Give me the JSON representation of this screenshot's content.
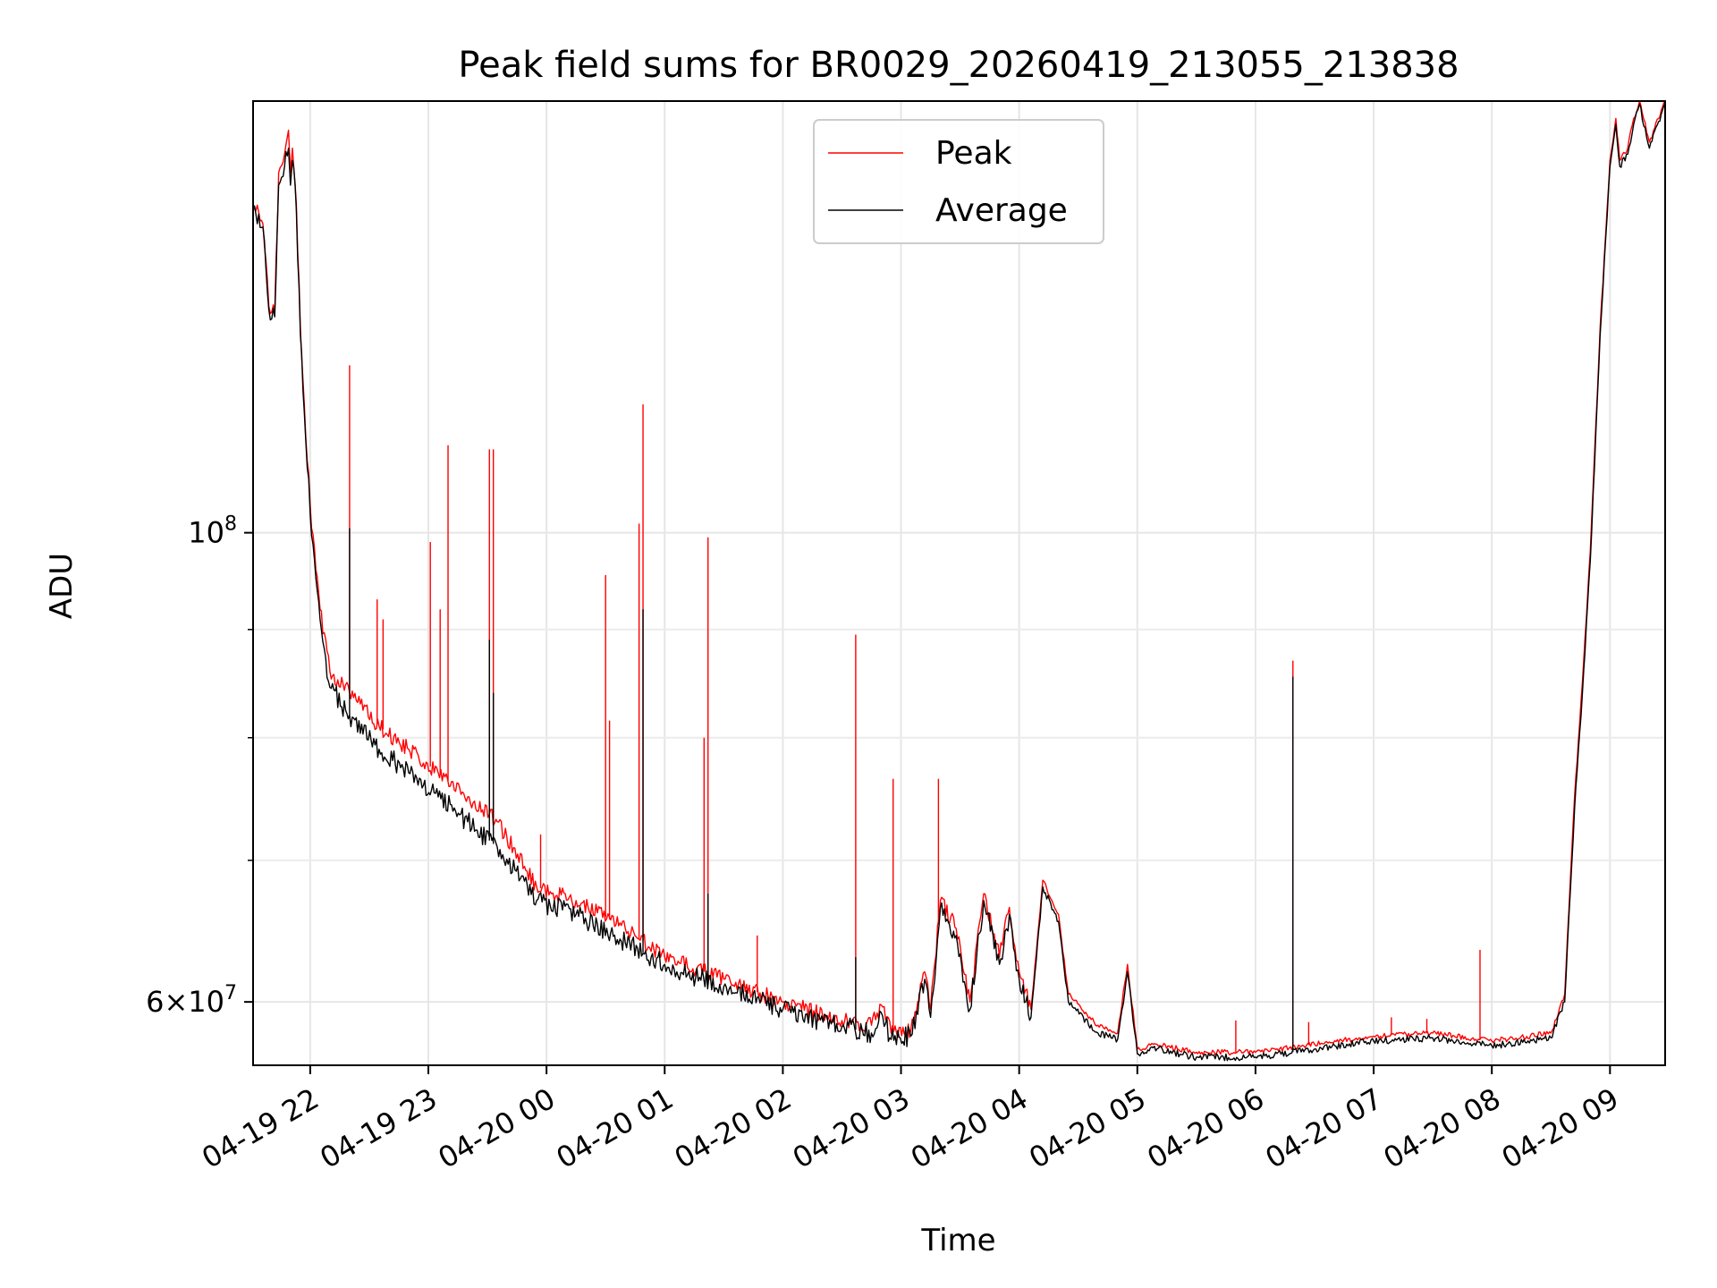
{
  "chart_data": {
    "type": "line",
    "title": "Peak field sums for BR0029_20260419_213055_213838",
    "xlabel": "Time",
    "ylabel": "ADU",
    "yscale": "log",
    "xlim": [
      "2026-04-19 21:31",
      "2026-04-20 09:28"
    ],
    "ylim": [
      56000000,
      160000000
    ],
    "grid": true,
    "legend": "top-center",
    "x_ticks": [
      {
        "value": "2026-04-19 22:00",
        "label": "04-19 22"
      },
      {
        "value": "2026-04-19 23:00",
        "label": "04-19 23"
      },
      {
        "value": "2026-04-20 00:00",
        "label": "04-20 00"
      },
      {
        "value": "2026-04-20 01:00",
        "label": "04-20 01"
      },
      {
        "value": "2026-04-20 02:00",
        "label": "04-20 02"
      },
      {
        "value": "2026-04-20 03:00",
        "label": "04-20 03"
      },
      {
        "value": "2026-04-20 04:00",
        "label": "04-20 04"
      },
      {
        "value": "2026-04-20 05:00",
        "label": "04-20 05"
      },
      {
        "value": "2026-04-20 06:00",
        "label": "04-20 06"
      },
      {
        "value": "2026-04-20 07:00",
        "label": "04-20 07"
      },
      {
        "value": "2026-04-20 08:00",
        "label": "04-20 08"
      },
      {
        "value": "2026-04-20 09:00",
        "label": "04-20 09"
      }
    ],
    "y_ticks": [
      {
        "value": 100000000,
        "base": "10",
        "exp": "8",
        "mult": ""
      },
      {
        "value": 60000000,
        "base": "10",
        "exp": "7",
        "mult": "6"
      }
    ],
    "y_minor_ticks": [
      70000000,
      80000000,
      90000000
    ],
    "series": [
      {
        "name": "Peak",
        "color": "#ff0000",
        "points": [
          [
            "2026-04-19 21:31",
            143000000
          ],
          [
            "2026-04-19 21:36",
            140000000
          ],
          [
            "2026-04-19 21:39",
            128000000
          ],
          [
            "2026-04-19 21:42",
            127000000
          ],
          [
            "2026-04-19 21:44",
            148000000
          ],
          [
            "2026-04-19 21:47",
            151000000
          ],
          [
            "2026-04-19 21:49",
            155000000
          ],
          [
            "2026-04-19 21:50",
            148000000
          ],
          [
            "2026-04-19 21:51",
            152000000
          ],
          [
            "2026-04-19 21:53",
            143000000
          ],
          [
            "2026-04-19 21:55",
            125000000
          ],
          [
            "2026-04-19 21:57",
            115000000
          ],
          [
            "2026-04-19 22:00",
            103000000
          ],
          [
            "2026-04-19 22:05",
            92000000
          ],
          [
            "2026-04-19 22:10",
            86000000
          ],
          [
            "2026-04-19 22:20",
            84000000
          ],
          [
            "2026-04-19 22:35",
            81000000
          ],
          [
            "2026-04-19 22:50",
            79000000
          ],
          [
            "2026-04-19 23:05",
            77000000
          ],
          [
            "2026-04-19 23:20",
            75000000
          ],
          [
            "2026-04-19 23:35",
            73000000
          ],
          [
            "2026-04-19 23:55",
            68000000
          ],
          [
            "2026-04-20 00:15",
            67000000
          ],
          [
            "2026-04-20 00:40",
            65000000
          ],
          [
            "2026-04-20 01:00",
            63000000
          ],
          [
            "2026-04-20 01:30",
            61500000
          ],
          [
            "2026-04-20 02:00",
            60000000
          ],
          [
            "2026-04-20 02:30",
            58800000
          ],
          [
            "2026-04-20 02:45",
            58500000
          ],
          [
            "2026-04-20 02:50",
            59800000
          ],
          [
            "2026-04-20 02:55",
            58000000
          ],
          [
            "2026-04-20 03:05",
            58200000
          ],
          [
            "2026-04-20 03:12",
            62000000
          ],
          [
            "2026-04-20 03:15",
            59500000
          ],
          [
            "2026-04-20 03:20",
            67000000
          ],
          [
            "2026-04-20 03:28",
            65000000
          ],
          [
            "2026-04-20 03:35",
            60000000
          ],
          [
            "2026-04-20 03:42",
            67500000
          ],
          [
            "2026-04-20 03:50",
            63000000
          ],
          [
            "2026-04-20 03:55",
            66500000
          ],
          [
            "2026-04-20 04:00",
            62000000
          ],
          [
            "2026-04-20 04:06",
            59500000
          ],
          [
            "2026-04-20 04:12",
            68500000
          ],
          [
            "2026-04-20 04:20",
            66000000
          ],
          [
            "2026-04-20 04:25",
            60500000
          ],
          [
            "2026-04-20 04:40",
            58500000
          ],
          [
            "2026-04-20 04:50",
            58000000
          ],
          [
            "2026-04-20 04:55",
            62500000
          ],
          [
            "2026-04-20 05:00",
            57000000
          ],
          [
            "2026-04-20 05:10",
            57300000
          ],
          [
            "2026-04-20 05:30",
            56800000
          ],
          [
            "2026-04-20 06:00",
            56800000
          ],
          [
            "2026-04-20 06:30",
            57300000
          ],
          [
            "2026-04-20 07:00",
            57800000
          ],
          [
            "2026-04-20 07:30",
            58000000
          ],
          [
            "2026-04-20 08:00",
            57500000
          ],
          [
            "2026-04-20 08:30",
            58000000
          ],
          [
            "2026-04-20 08:37",
            60500000
          ],
          [
            "2026-04-20 08:42",
            75000000
          ],
          [
            "2026-04-20 08:46",
            85000000
          ],
          [
            "2026-04-20 08:50",
            98000000
          ],
          [
            "2026-04-20 08:55",
            125000000
          ],
          [
            "2026-04-20 09:00",
            150000000
          ],
          [
            "2026-04-20 09:03",
            157000000
          ],
          [
            "2026-04-20 09:05",
            150000000
          ],
          [
            "2026-04-20 09:09",
            152000000
          ],
          [
            "2026-04-20 09:12",
            157000000
          ],
          [
            "2026-04-20 09:15",
            160000000
          ],
          [
            "2026-04-20 09:20",
            153000000
          ],
          [
            "2026-04-20 09:28",
            160000000
          ]
        ],
        "spikes": [
          [
            "2026-04-19 22:20",
            120000000
          ],
          [
            "2026-04-19 22:34",
            93000000
          ],
          [
            "2026-04-19 22:37",
            91000000
          ],
          [
            "2026-04-19 23:01",
            99000000
          ],
          [
            "2026-04-19 23:06",
            92000000
          ],
          [
            "2026-04-19 23:10",
            110000000
          ],
          [
            "2026-04-19 23:31",
            109500000
          ],
          [
            "2026-04-19 23:33",
            109500000
          ],
          [
            "2026-04-19 23:57",
            72000000
          ],
          [
            "2026-04-20 00:30",
            95500000
          ],
          [
            "2026-04-20 00:32",
            81500000
          ],
          [
            "2026-04-20 00:47",
            101000000
          ],
          [
            "2026-04-20 00:49",
            115000000
          ],
          [
            "2026-04-20 01:20",
            80000000
          ],
          [
            "2026-04-20 01:22",
            99500000
          ],
          [
            "2026-04-20 01:47",
            64500000
          ],
          [
            "2026-04-20 02:37",
            89500000
          ],
          [
            "2026-04-20 02:56",
            76500000
          ],
          [
            "2026-04-20 03:19",
            76500000
          ],
          [
            "2026-04-20 05:50",
            58800000
          ],
          [
            "2026-04-20 06:19",
            87000000
          ],
          [
            "2026-04-20 06:27",
            58700000
          ],
          [
            "2026-04-20 07:09",
            59000000
          ],
          [
            "2026-04-20 07:27",
            58900000
          ],
          [
            "2026-04-20 07:54",
            63500000
          ]
        ]
      },
      {
        "name": "Average",
        "color": "#000000",
        "points": [
          [
            "2026-04-19 21:31",
            142500000
          ],
          [
            "2026-04-19 21:36",
            139500000
          ],
          [
            "2026-04-19 21:39",
            127500000
          ],
          [
            "2026-04-19 21:42",
            126500000
          ],
          [
            "2026-04-19 21:44",
            146000000
          ],
          [
            "2026-04-19 21:47",
            149000000
          ],
          [
            "2026-04-19 21:49",
            152000000
          ],
          [
            "2026-04-19 21:50",
            146000000
          ],
          [
            "2026-04-19 21:51",
            150000000
          ],
          [
            "2026-04-19 21:53",
            142000000
          ],
          [
            "2026-04-19 21:55",
            124000000
          ],
          [
            "2026-04-19 21:57",
            114000000
          ],
          [
            "2026-04-19 22:00",
            102000000
          ],
          [
            "2026-04-19 22:05",
            91000000
          ],
          [
            "2026-04-19 22:10",
            84500000
          ],
          [
            "2026-04-19 22:20",
            82000000
          ],
          [
            "2026-04-19 22:35",
            79000000
          ],
          [
            "2026-04-19 22:50",
            77000000
          ],
          [
            "2026-04-19 23:05",
            75000000
          ],
          [
            "2026-04-19 23:20",
            73000000
          ],
          [
            "2026-04-19 23:35",
            71000000
          ],
          [
            "2026-04-19 23:55",
            67000000
          ],
          [
            "2026-04-20 00:15",
            66000000
          ],
          [
            "2026-04-20 00:40",
            64000000
          ],
          [
            "2026-04-20 01:00",
            62500000
          ],
          [
            "2026-04-20 01:30",
            61000000
          ],
          [
            "2026-04-20 02:00",
            59500000
          ],
          [
            "2026-04-20 02:30",
            58400000
          ],
          [
            "2026-04-20 02:45",
            58000000
          ],
          [
            "2026-04-20 02:50",
            59300000
          ],
          [
            "2026-04-20 02:55",
            57600000
          ],
          [
            "2026-04-20 03:05",
            57800000
          ],
          [
            "2026-04-20 03:12",
            61500000
          ],
          [
            "2026-04-20 03:15",
            59000000
          ],
          [
            "2026-04-20 03:20",
            66500000
          ],
          [
            "2026-04-20 03:28",
            64500000
          ],
          [
            "2026-04-20 03:35",
            59500000
          ],
          [
            "2026-04-20 03:42",
            67000000
          ],
          [
            "2026-04-20 03:50",
            62500000
          ],
          [
            "2026-04-20 03:55",
            66000000
          ],
          [
            "2026-04-20 04:00",
            61500000
          ],
          [
            "2026-04-20 04:06",
            59000000
          ],
          [
            "2026-04-20 04:12",
            68000000
          ],
          [
            "2026-04-20 04:20",
            65500000
          ],
          [
            "2026-04-20 04:25",
            60000000
          ],
          [
            "2026-04-20 04:40",
            58000000
          ],
          [
            "2026-04-20 04:50",
            57600000
          ],
          [
            "2026-04-20 04:55",
            62000000
          ],
          [
            "2026-04-20 05:00",
            56700000
          ],
          [
            "2026-04-20 05:10",
            57000000
          ],
          [
            "2026-04-20 05:30",
            56500000
          ],
          [
            "2026-04-20 06:00",
            56500000
          ],
          [
            "2026-04-20 06:30",
            57000000
          ],
          [
            "2026-04-20 07:00",
            57500000
          ],
          [
            "2026-04-20 07:30",
            57700000
          ],
          [
            "2026-04-20 08:00",
            57200000
          ],
          [
            "2026-04-20 08:30",
            57700000
          ],
          [
            "2026-04-20 08:37",
            60000000
          ],
          [
            "2026-04-20 08:42",
            74000000
          ],
          [
            "2026-04-20 08:46",
            84000000
          ],
          [
            "2026-04-20 08:50",
            97000000
          ],
          [
            "2026-04-20 08:55",
            124000000
          ],
          [
            "2026-04-20 09:00",
            149000000
          ],
          [
            "2026-04-20 09:03",
            156000000
          ],
          [
            "2026-04-20 09:05",
            149000000
          ],
          [
            "2026-04-20 09:09",
            151000000
          ],
          [
            "2026-04-20 09:12",
            156000000
          ],
          [
            "2026-04-20 09:15",
            159500000
          ],
          [
            "2026-04-20 09:20",
            152000000
          ],
          [
            "2026-04-20 09:28",
            159500000
          ]
        ],
        "spikes": [
          [
            "2026-04-19 22:20",
            100500000
          ],
          [
            "2026-04-19 23:31",
            89000000
          ],
          [
            "2026-04-19 23:33",
            84000000
          ],
          [
            "2026-04-20 00:49",
            92000000
          ],
          [
            "2026-04-20 01:22",
            67500000
          ],
          [
            "2026-04-20 02:37",
            63000000
          ],
          [
            "2026-04-20 06:19",
            85500000
          ]
        ]
      }
    ]
  }
}
